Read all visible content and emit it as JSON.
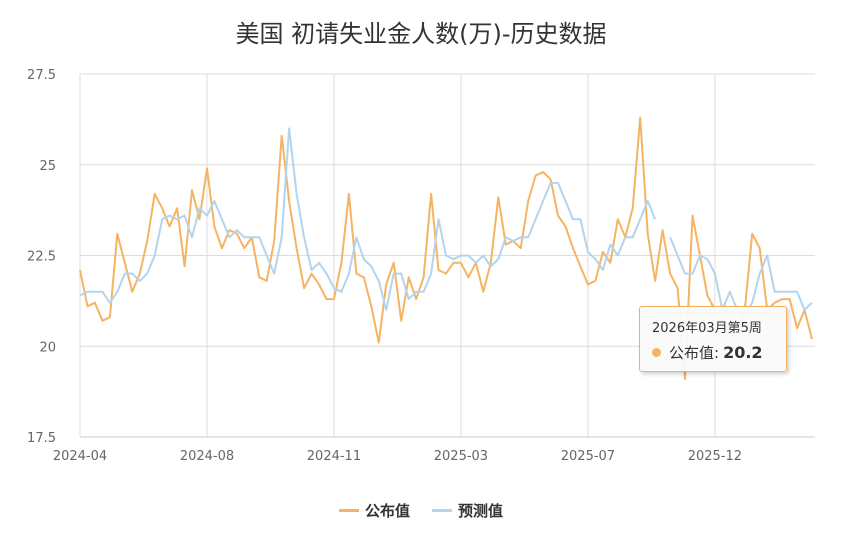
{
  "chart_data": {
    "type": "line",
    "title": "美国 初请失业金人数(万)-历史数据",
    "xlabel": "",
    "ylabel": "",
    "ylim": [
      17.5,
      27.5
    ],
    "yticks": [
      "17.5",
      "20",
      "22.5",
      "25",
      "27.5"
    ],
    "ytick_values": [
      17.5,
      20,
      22.5,
      25,
      27.5
    ],
    "xticks": [
      {
        "label": "2024-04",
        "index": 0
      },
      {
        "label": "2024-08",
        "index": 17
      },
      {
        "label": "2024-11",
        "index": 34
      },
      {
        "label": "2025-03",
        "index": 51
      },
      {
        "label": "2025-07",
        "index": 68
      },
      {
        "label": "2025-12",
        "index": 85
      }
    ],
    "grid": true,
    "legend_position": "bottom",
    "series": [
      {
        "name": "公布值",
        "color": "#f5b462",
        "values": [
          22.1,
          21.1,
          21.2,
          20.7,
          20.8,
          23.1,
          22.3,
          21.5,
          22.0,
          22.9,
          24.2,
          23.8,
          23.3,
          23.8,
          22.2,
          24.3,
          23.5,
          24.9,
          23.3,
          22.7,
          23.2,
          23.1,
          22.7,
          23.0,
          21.9,
          21.8,
          22.9,
          25.8,
          24.0,
          22.7,
          21.6,
          22.0,
          21.7,
          21.3,
          21.3,
          22.3,
          24.2,
          22.0,
          21.9,
          21.1,
          20.1,
          21.7,
          22.3,
          20.7,
          21.9,
          21.3,
          21.9,
          24.2,
          22.1,
          22.0,
          22.3,
          22.3,
          21.9,
          22.3,
          21.5,
          22.3,
          24.1,
          22.8,
          22.9,
          22.7,
          24.0,
          24.7,
          24.8,
          24.6,
          23.6,
          23.3,
          22.7,
          22.2,
          21.7,
          21.8,
          22.6,
          22.3,
          23.5,
          23.0,
          23.8,
          26.3,
          23.1,
          21.8,
          23.2,
          22.0,
          21.6,
          19.1,
          23.6,
          22.5,
          21.4,
          21.0,
          20.6,
          20.9,
          20.5,
          21.0,
          23.1,
          22.7,
          21.0,
          21.2,
          21.3,
          21.3,
          20.5,
          21.0,
          20.2
        ]
      },
      {
        "name": "预测值",
        "color": "#b3d4ee",
        "values": [
          21.4,
          21.5,
          21.5,
          21.5,
          21.2,
          21.5,
          22.0,
          22.0,
          21.8,
          22.0,
          22.5,
          23.5,
          23.6,
          23.5,
          23.6,
          23.0,
          23.8,
          23.6,
          24.0,
          23.5,
          23.0,
          23.2,
          23.0,
          23.0,
          23.0,
          22.5,
          22.0,
          23.0,
          26.0,
          24.2,
          23.0,
          22.1,
          22.3,
          22.0,
          21.6,
          21.5,
          22.0,
          23.0,
          22.4,
          22.2,
          21.8,
          21.0,
          22.0,
          22.0,
          21.3,
          21.5,
          21.5,
          22.0,
          23.5,
          22.5,
          22.4,
          22.5,
          22.5,
          22.3,
          22.5,
          22.2,
          22.4,
          23.0,
          22.9,
          23.0,
          23.0,
          23.5,
          24.0,
          24.5,
          24.5,
          24.0,
          23.5,
          23.5,
          22.6,
          22.4,
          22.1,
          22.8,
          22.5,
          23.0,
          23.0,
          23.5,
          24.0,
          23.5,
          null,
          23.0,
          22.5,
          22.0,
          22.0,
          22.5,
          22.4,
          22.0,
          21.0,
          21.5,
          21.0,
          20.8,
          21.2,
          22.0,
          22.5,
          21.5,
          21.5,
          21.5,
          21.5,
          21.0,
          21.2
        ]
      }
    ]
  },
  "tooltip": {
    "date": "2026年03月第5周",
    "series_name": "公布值:",
    "value": "20.2"
  }
}
